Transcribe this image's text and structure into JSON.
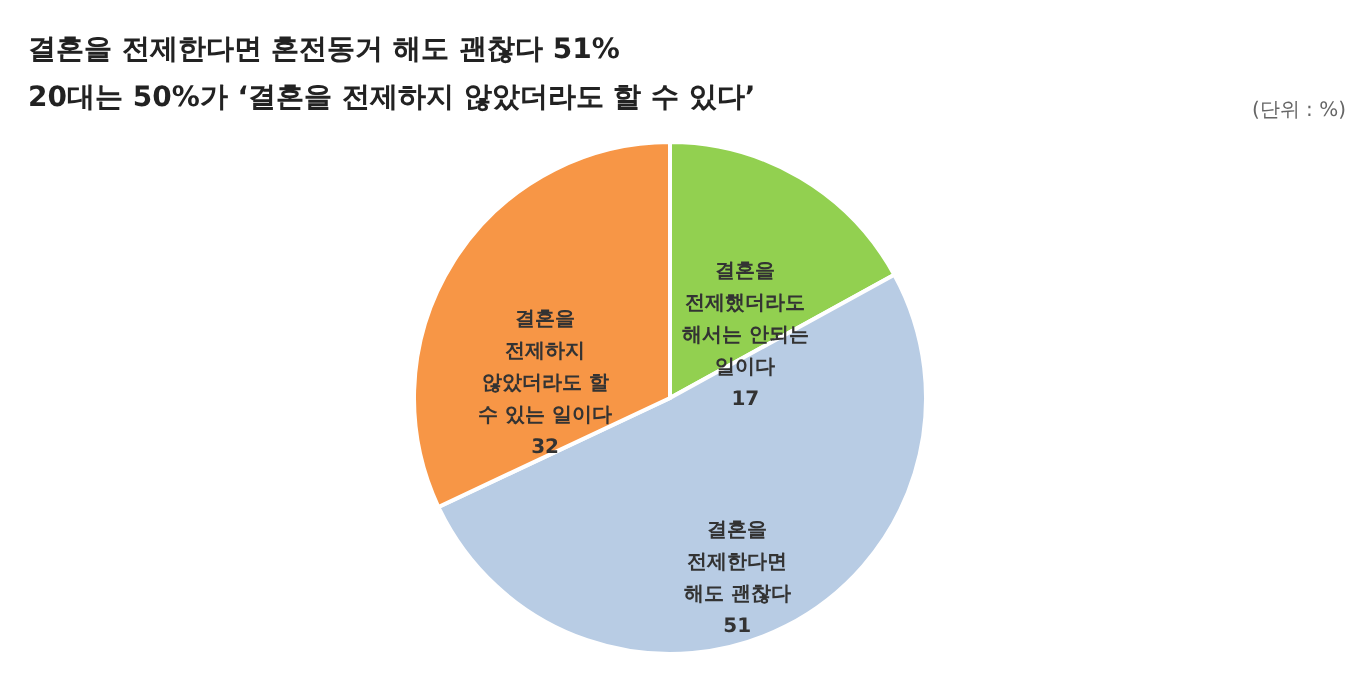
{
  "chart_data": {
    "type": "pie",
    "title": "결혼을 전제한다면 혼전동거 해도 괜찮다 51%",
    "subtitle": "20대는 50%가 ‘결혼을 전제하지 않았더라도 할 수 있다’",
    "annotations": [
      "(단위 : %)"
    ],
    "categories": [
      "결혼을\n전제했더라도\n해서는 안되는\n일이다",
      "결혼을\n전제한다면\n해도 괜찮다",
      "결혼을\n전제하지\n않았더라도 할\n수 있는 일이다"
    ],
    "values": [
      17,
      51,
      32
    ],
    "colors": [
      "#92d050",
      "#b8cce4",
      "#f79646"
    ],
    "data_labels": true
  }
}
